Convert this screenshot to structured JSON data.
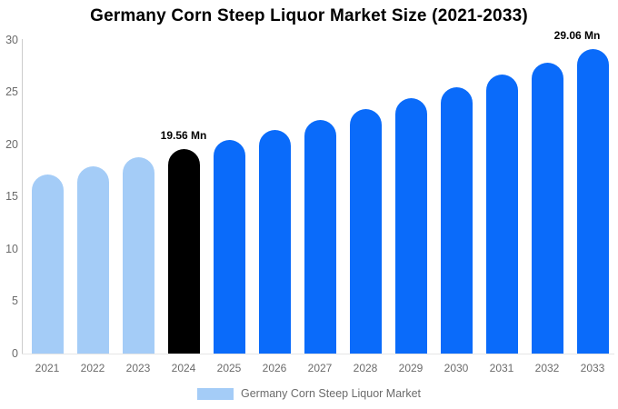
{
  "title": "Germany Corn Steep Liquor Market Size (2021-2033)",
  "legend": {
    "label": "Germany Corn Steep Liquor Market",
    "swatch_color": "#a4ccf7"
  },
  "colors": {
    "historical_bar": "#a4ccf7",
    "base_year_bar": "#000000",
    "forecast_bar": "#0a6bfa",
    "y_axis_line": "#cccccc",
    "x_axis_line": "#e5e5e5",
    "tick_text": "#6b6b6b",
    "annotation_text": "#000000",
    "background": "#ffffff"
  },
  "chart_data": {
    "type": "bar",
    "title": "Germany Corn Steep Liquor Market Size (2021-2033)",
    "categories": [
      "2021",
      "2022",
      "2023",
      "2024",
      "2025",
      "2026",
      "2027",
      "2028",
      "2029",
      "2030",
      "2031",
      "2032",
      "2033"
    ],
    "values": [
      17.14,
      17.91,
      18.72,
      19.56,
      20.44,
      21.36,
      22.32,
      23.33,
      24.38,
      25.48,
      26.62,
      27.82,
      29.06
    ],
    "bar_colors": [
      "#a4ccf7",
      "#a4ccf7",
      "#a4ccf7",
      "#000000",
      "#0a6bfa",
      "#0a6bfa",
      "#0a6bfa",
      "#0a6bfa",
      "#0a6bfa",
      "#0a6bfa",
      "#0a6bfa",
      "#0a6bfa",
      "#0a6bfa"
    ],
    "xlabel": "",
    "ylabel": "",
    "ylim": [
      0,
      30
    ],
    "yticks": [
      0,
      5,
      10,
      15,
      20,
      25,
      30
    ],
    "grid": false,
    "legend_position": "bottom",
    "legend_entries": [
      "Germany Corn Steep Liquor Market"
    ],
    "annotations": [
      {
        "category": "2024",
        "text": "19.56 Mn"
      },
      {
        "category": "2033",
        "text": "29.06 Mn"
      }
    ]
  }
}
